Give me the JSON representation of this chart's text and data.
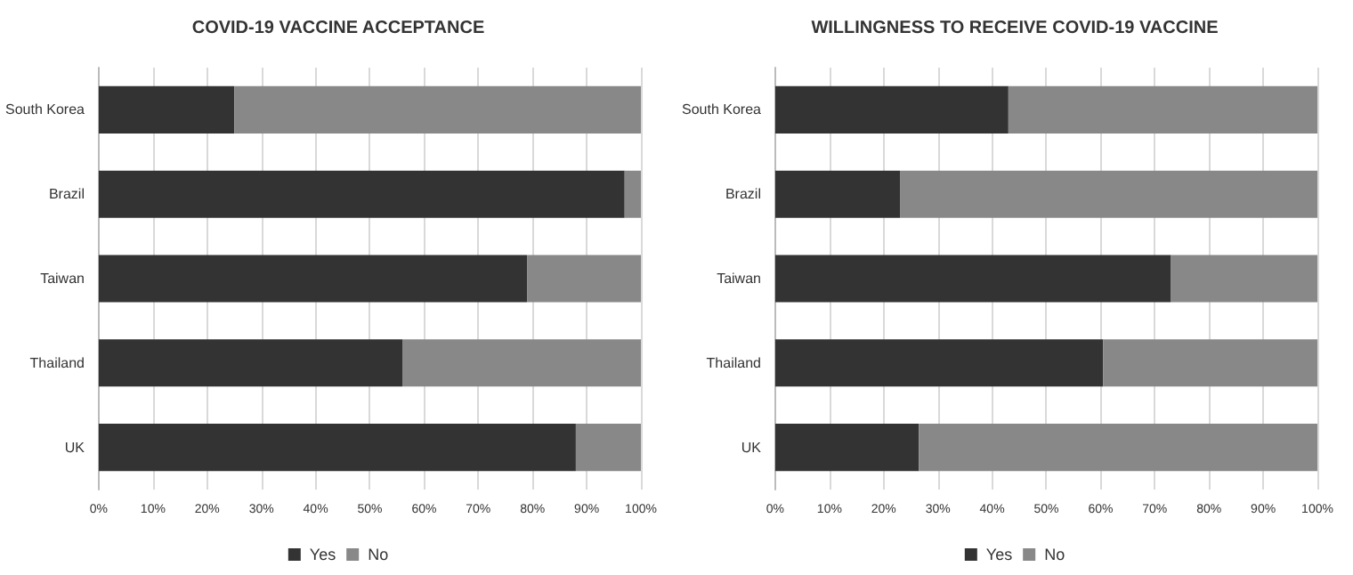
{
  "chart_data": [
    {
      "type": "bar",
      "orientation": "horizontal",
      "stacked": true,
      "title": "COVID-19 VACCINE ACCEPTANCE",
      "categories": [
        "South Korea",
        "Brazil",
        "Taiwan",
        "Thailand",
        "UK"
      ],
      "series": [
        {
          "name": "Yes",
          "color": "#333333",
          "values": [
            25,
            97,
            79,
            56,
            88
          ]
        },
        {
          "name": "No",
          "color": "#888888",
          "values": [
            75,
            3,
            21,
            44,
            12
          ]
        }
      ],
      "xlim": [
        0,
        100
      ],
      "xticks": [
        {
          "value": 0,
          "label": "0%"
        },
        {
          "value": 10,
          "label": "10%"
        },
        {
          "value": 20,
          "label": "20%"
        },
        {
          "value": 30,
          "label": "30%"
        },
        {
          "value": 40,
          "label": "40%"
        },
        {
          "value": 50,
          "label": "50%"
        },
        {
          "value": 60,
          "label": "60%"
        },
        {
          "value": 70,
          "label": "70%"
        },
        {
          "value": 80,
          "label": "80%"
        },
        {
          "value": 90,
          "label": "90%"
        },
        {
          "value": 100,
          "label": "100%"
        }
      ],
      "grid": "x",
      "legend": "bottom"
    },
    {
      "type": "bar",
      "orientation": "horizontal",
      "stacked": true,
      "title": "WILLINGNESS TO RECEIVE COVID-19 VACCINE",
      "categories": [
        "South Korea",
        "Brazil",
        "Taiwan",
        "Thailand",
        "UK"
      ],
      "series": [
        {
          "name": "Yes",
          "color": "#333333",
          "values": [
            43,
            23,
            73,
            60.5,
            26.5
          ]
        },
        {
          "name": "No",
          "color": "#888888",
          "values": [
            57,
            77,
            27,
            39.5,
            73.5
          ]
        }
      ],
      "xlim": [
        0,
        100
      ],
      "xticks": [
        {
          "value": 0,
          "label": "0%"
        },
        {
          "value": 10,
          "label": "10%"
        },
        {
          "value": 20,
          "label": "20%"
        },
        {
          "value": 30,
          "label": "30%"
        },
        {
          "value": 40,
          "label": "40%"
        },
        {
          "value": 50,
          "label": "50%"
        },
        {
          "value": 60,
          "label": "60%"
        },
        {
          "value": 70,
          "label": "70%"
        },
        {
          "value": 80,
          "label": "80%"
        },
        {
          "value": 90,
          "label": "90%"
        },
        {
          "value": 100,
          "label": "100%"
        }
      ],
      "grid": "x",
      "legend": "bottom"
    }
  ]
}
